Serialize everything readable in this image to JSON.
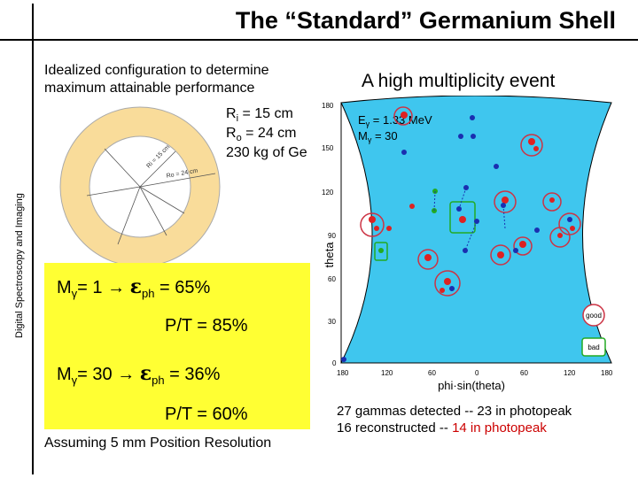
{
  "side_label": "Digital Spectroscopy and Imaging",
  "title": "The “Standard” Germanium Shell",
  "intro": "Idealized configuration to determine maximum attainable performance",
  "params": {
    "ri_sym": "R",
    "ri_sub": "i",
    "ri_val": " = 15 cm",
    "ro_sym": "R",
    "ro_sub": "o",
    "ro_val": " = 24 cm",
    "mass": "230 kg of Ge"
  },
  "diagram_labels": {
    "inner": "Ri = 15 cm",
    "outer": "Ro = 24 cm"
  },
  "panel": {
    "m_sym": "M",
    "m_sub": "γ",
    "row1_mult": "= 1 ",
    "row1_eps": "ε",
    "row1_sub": "ph",
    "row1_val": " = 65%",
    "row1_pt": "P/T = 85%",
    "row2_mult": "= 30 ",
    "row2_eps": "ε",
    "row2_sub": "ph",
    "row2_val": " = 36%",
    "row2_pt": "P/T = 60%",
    "arrow": "→"
  },
  "assumption": "Assuming 5 mm Position Resolution",
  "event": {
    "title": "A high multiplicity event",
    "e_label": "E",
    "e_sub": "γ",
    "e_val": " = 1.33 MeV",
    "m_label": "M",
    "m_sub": "γ",
    "m_val": " = 30",
    "ylabel": "theta",
    "xlabel": "phi·sin(theta)",
    "yticks": [
      "180",
      "150",
      "120",
      "90",
      "60",
      "30",
      "0"
    ],
    "xticks": [
      "180",
      "120",
      "60",
      "0",
      "60",
      "120",
      "180"
    ],
    "legend_good": "good",
    "legend_bad": "bad"
  },
  "footnote": {
    "l1a": "27 gammas detected  --  ",
    "l1b": "23 in photopeak",
    "l2a": "16 reconstructed       --  ",
    "l2b": "14 in photopeak"
  },
  "colors": {
    "panel": "#ffff33",
    "shell": "#f9dc9a",
    "plot": "#3fc6ee",
    "good": "#cc3344",
    "bad": "#22aa22",
    "hit_red": "#dd2222",
    "hit_blue": "#1a2fb0"
  }
}
